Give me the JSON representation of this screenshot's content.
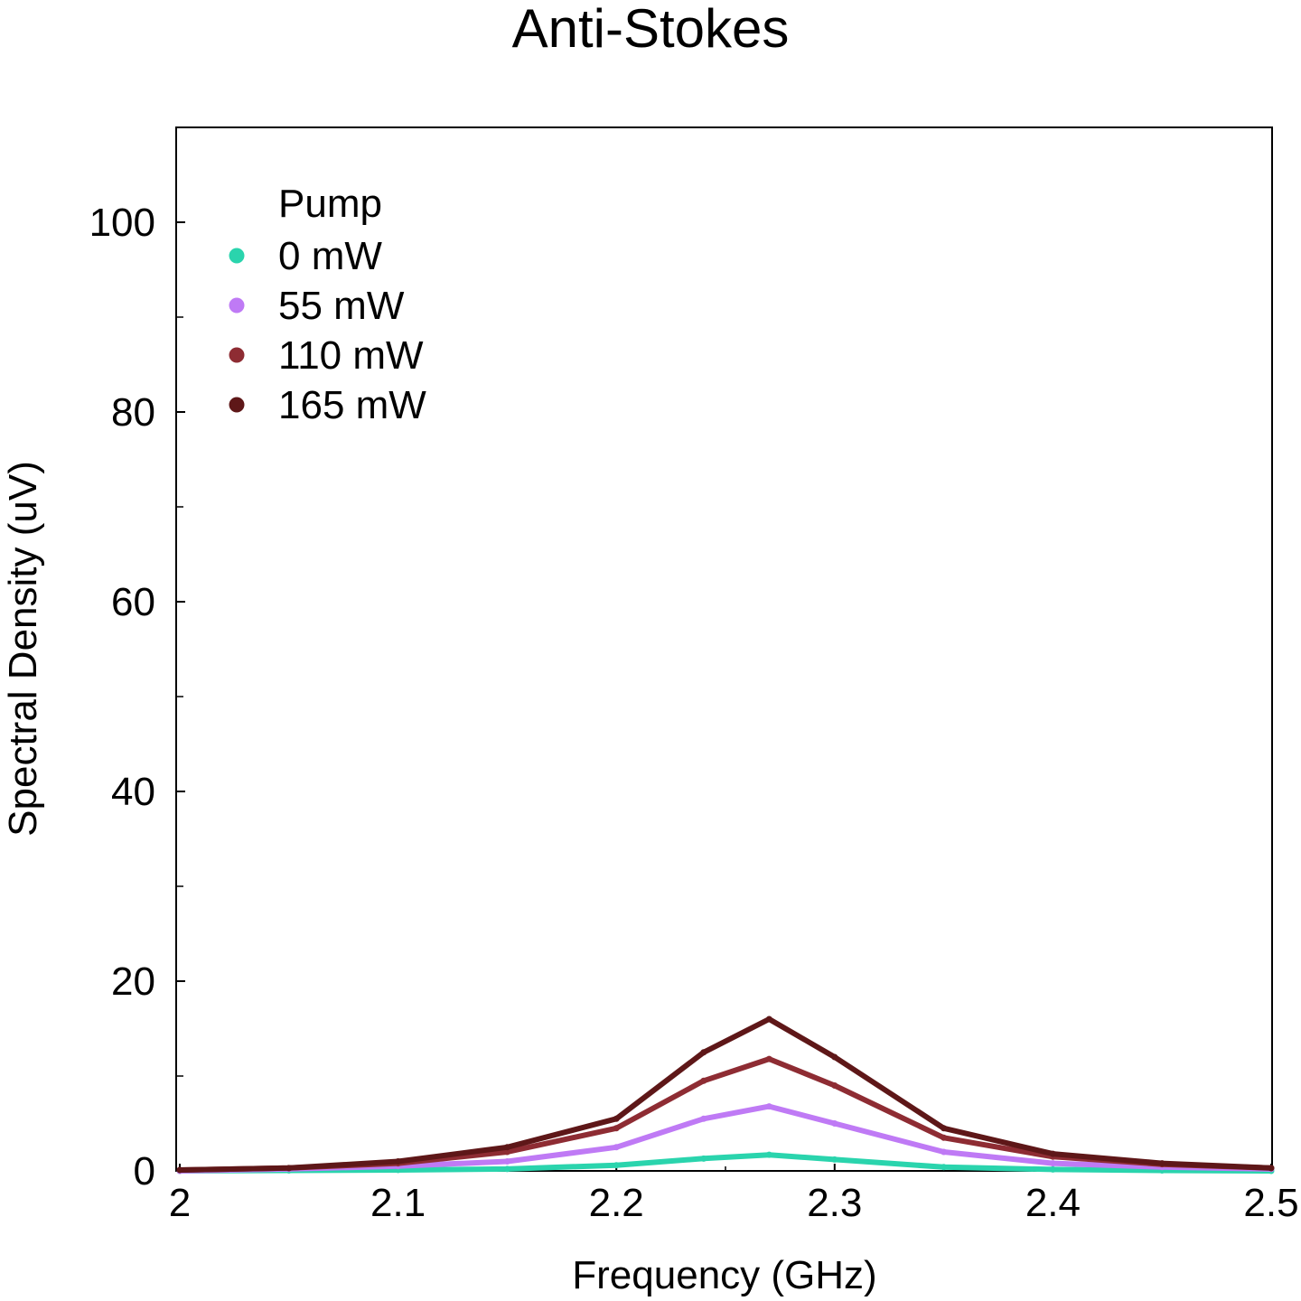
{
  "chart_data": {
    "type": "scatter",
    "title": "Anti-Stokes",
    "xlabel": "Frequency (GHz)",
    "ylabel": "Spectral Density (uV)",
    "xlim": [
      2.0,
      2.5
    ],
    "ylim": [
      0,
      110
    ],
    "xticks": [
      2.0,
      2.1,
      2.2,
      2.3,
      2.4,
      2.5
    ],
    "xtick_labels": [
      "2",
      "2.1",
      "2.2",
      "2.3",
      "2.4",
      "2.5"
    ],
    "yticks": [
      0,
      20,
      40,
      60,
      80,
      100
    ],
    "ytick_labels": [
      "0",
      "20",
      "40",
      "60",
      "80",
      "100"
    ],
    "legend_title": "Pump",
    "legend_position": "top-left",
    "grid": false,
    "series": [
      {
        "name": "0 mW",
        "color": "#2ad4ad",
        "x": [
          2.0,
          2.05,
          2.1,
          2.15,
          2.2,
          2.24,
          2.27,
          2.3,
          2.35,
          2.4,
          2.45,
          2.5
        ],
        "y": [
          0.0,
          0.05,
          0.1,
          0.2,
          0.6,
          1.3,
          1.7,
          1.2,
          0.4,
          0.15,
          0.05,
          0.0
        ]
      },
      {
        "name": "55 mW",
        "color": "#bf7af5",
        "x": [
          2.0,
          2.05,
          2.1,
          2.15,
          2.2,
          2.24,
          2.27,
          2.3,
          2.35,
          2.4,
          2.45,
          2.5
        ],
        "y": [
          0.0,
          0.2,
          0.5,
          1.0,
          2.5,
          5.5,
          6.8,
          5.0,
          2.0,
          0.8,
          0.4,
          0.2
        ]
      },
      {
        "name": "110 mW",
        "color": "#8e2c33",
        "x": [
          2.0,
          2.05,
          2.1,
          2.15,
          2.2,
          2.24,
          2.27,
          2.3,
          2.35,
          2.4,
          2.45,
          2.5
        ],
        "y": [
          0.1,
          0.3,
          0.8,
          2.0,
          4.5,
          9.5,
          11.8,
          9.0,
          3.5,
          1.5,
          0.7,
          0.3
        ]
      },
      {
        "name": "165 mW",
        "color": "#5e1718",
        "x": [
          2.0,
          2.05,
          2.1,
          2.15,
          2.2,
          2.24,
          2.27,
          2.3,
          2.35,
          2.4,
          2.45,
          2.5
        ],
        "y": [
          0.1,
          0.3,
          1.0,
          2.5,
          5.5,
          12.5,
          16.0,
          12.0,
          4.5,
          1.8,
          0.8,
          0.3
        ]
      }
    ]
  }
}
